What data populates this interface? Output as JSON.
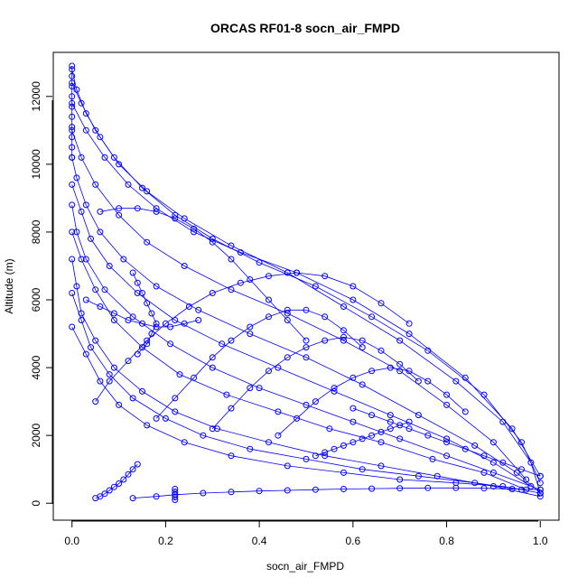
{
  "chart_data": {
    "type": "scatter",
    "title": "ORCAS RF01-8 socn_air_FMPD",
    "xlabel": "socn_air_FMPD",
    "ylabel": "Altitude (m)",
    "xlim": [
      -0.04,
      1.04
    ],
    "ylim": [
      -500,
      13300
    ],
    "xticks": [
      0.0,
      0.2,
      0.4,
      0.6,
      0.8,
      1.0
    ],
    "xtick_labels": [
      "0.0",
      "0.2",
      "0.4",
      "0.6",
      "0.8",
      "1.0"
    ],
    "yticks": [
      0,
      2000,
      4000,
      6000,
      8000,
      10000,
      12000
    ],
    "ytick_labels": [
      "0",
      "2000",
      "4000",
      "6000",
      "8000",
      "10000",
      "12000"
    ],
    "grid": false,
    "marker": "open-circle",
    "color": "#0000ff",
    "series": [
      {
        "x": [
          0.0,
          0.01,
          0.03,
          0.06,
          0.1,
          0.16,
          0.24,
          0.34,
          0.46,
          0.58,
          0.7,
          0.82,
          0.92,
          0.98,
          1.0
        ],
        "y": [
          12800,
          12200,
          11500,
          10800,
          10000,
          9200,
          8400,
          7600,
          6800,
          5800,
          4800,
          3600,
          2400,
          1200,
          300
        ]
      },
      {
        "x": [
          0.0,
          0.02,
          0.05,
          0.09,
          0.15,
          0.22,
          0.3,
          0.4,
          0.52,
          0.64,
          0.76,
          0.88,
          0.96,
          1.0
        ],
        "y": [
          12400,
          11800,
          11000,
          10200,
          9300,
          8500,
          7800,
          7100,
          6400,
          5500,
          4500,
          3200,
          1800,
          600
        ]
      },
      {
        "x": [
          0.0,
          0.03,
          0.07,
          0.12,
          0.18,
          0.26,
          0.36,
          0.48,
          0.6,
          0.72,
          0.84,
          0.94,
          1.0
        ],
        "y": [
          11800,
          11000,
          10200,
          9400,
          8700,
          8000,
          7400,
          6800,
          6000,
          5000,
          3700,
          2200,
          800
        ]
      },
      {
        "x": [
          0.0,
          0.02,
          0.05,
          0.1,
          0.16,
          0.24,
          0.34,
          0.46,
          0.58,
          0.7,
          0.8,
          0.9,
          0.97
        ],
        "y": [
          11000,
          10200,
          9400,
          8500,
          7700,
          7000,
          6300,
          5600,
          4800,
          3900,
          2900,
          1800,
          700
        ]
      },
      {
        "x": [
          0.0,
          0.01,
          0.03,
          0.06,
          0.11,
          0.18,
          0.27,
          0.38,
          0.5,
          0.62,
          0.74,
          0.86,
          0.95,
          1.0
        ],
        "y": [
          10200,
          9600,
          8800,
          8000,
          7200,
          6400,
          5700,
          5000,
          4300,
          3500,
          2600,
          1700,
          900,
          300
        ]
      },
      {
        "x": [
          0.0,
          0.02,
          0.04,
          0.08,
          0.14,
          0.22,
          0.32,
          0.44,
          0.56,
          0.68,
          0.8,
          0.9,
          0.98
        ],
        "y": [
          9400,
          8600,
          7800,
          7000,
          6200,
          5400,
          4700,
          4000,
          3300,
          2600,
          1900,
          1200,
          500
        ]
      },
      {
        "x": [
          0.0,
          0.01,
          0.03,
          0.07,
          0.13,
          0.21,
          0.3,
          0.4,
          0.5,
          0.6,
          0.7,
          0.8,
          0.9,
          1.0
        ],
        "y": [
          8800,
          8000,
          7200,
          6300,
          5500,
          4700,
          4000,
          3400,
          2900,
          2400,
          1900,
          1400,
          900,
          400
        ]
      },
      {
        "x": [
          0.0,
          0.02,
          0.05,
          0.09,
          0.15,
          0.23,
          0.33,
          0.44,
          0.55,
          0.66,
          0.77,
          0.88,
          0.97
        ],
        "y": [
          8000,
          7200,
          6300,
          5400,
          4600,
          3800,
          3200,
          2700,
          2200,
          1800,
          1300,
          900,
          400
        ]
      },
      {
        "x": [
          0.0,
          0.01,
          0.02,
          0.05,
          0.09,
          0.15,
          0.22,
          0.31,
          0.42,
          0.54,
          0.66,
          0.78,
          0.9,
          1.0
        ],
        "y": [
          7200,
          6400,
          5600,
          4800,
          4000,
          3300,
          2700,
          2200,
          1800,
          1400,
          1100,
          800,
          500,
          200
        ]
      },
      {
        "x": [
          0.0,
          0.02,
          0.04,
          0.08,
          0.13,
          0.2,
          0.28,
          0.38,
          0.5,
          0.62,
          0.74,
          0.86,
          0.96
        ],
        "y": [
          6200,
          5400,
          4600,
          3800,
          3100,
          2500,
          2000,
          1600,
          1300,
          1000,
          800,
          600,
          400
        ]
      },
      {
        "x": [
          0.0,
          0.03,
          0.06,
          0.1,
          0.16,
          0.24,
          0.34,
          0.46,
          0.58,
          0.7,
          0.82,
          0.92,
          1.0
        ],
        "y": [
          5200,
          4400,
          3600,
          2900,
          2300,
          1800,
          1400,
          1100,
          900,
          700,
          600,
          500,
          300
        ]
      },
      {
        "x": [
          0.05,
          0.08,
          0.12,
          0.16,
          0.2,
          0.25,
          0.3,
          0.36,
          0.42,
          0.48,
          0.54,
          0.6,
          0.66,
          0.72
        ],
        "y": [
          3000,
          3600,
          4200,
          4800,
          5300,
          5800,
          6200,
          6500,
          6700,
          6800,
          6700,
          6400,
          5900,
          5300
        ]
      },
      {
        "x": [
          0.18,
          0.22,
          0.26,
          0.3,
          0.34,
          0.38,
          0.42,
          0.46,
          0.5,
          0.54,
          0.58,
          0.62
        ],
        "y": [
          2500,
          3100,
          3700,
          4300,
          4800,
          5200,
          5500,
          5700,
          5700,
          5500,
          5100,
          4600
        ]
      },
      {
        "x": [
          0.3,
          0.34,
          0.38,
          0.42,
          0.46,
          0.5,
          0.54,
          0.58,
          0.62,
          0.66,
          0.7,
          0.74
        ],
        "y": [
          2200,
          2800,
          3400,
          3900,
          4300,
          4600,
          4800,
          4900,
          4800,
          4500,
          4100,
          3600
        ]
      },
      {
        "x": [
          0.44,
          0.48,
          0.52,
          0.56,
          0.6,
          0.64,
          0.68,
          0.72,
          0.76,
          0.8,
          0.84
        ],
        "y": [
          2000,
          2500,
          3000,
          3400,
          3700,
          3900,
          4000,
          3900,
          3600,
          3200,
          2700
        ]
      },
      {
        "x": [
          0.06,
          0.1,
          0.14,
          0.18,
          0.22,
          0.26,
          0.3,
          0.34,
          0.38,
          0.42,
          0.46,
          0.5
        ],
        "y": [
          8600,
          8700,
          8700,
          8600,
          8400,
          8100,
          7700,
          7200,
          6600,
          6000,
          5400,
          4800
        ]
      },
      {
        "x": [
          0.03,
          0.06,
          0.09,
          0.12,
          0.15,
          0.18,
          0.21,
          0.24,
          0.27
        ],
        "y": [
          6000,
          5800,
          5600,
          5400,
          5300,
          5200,
          5200,
          5300,
          5400
        ]
      },
      {
        "x": [
          0.13,
          0.14,
          0.15,
          0.16,
          0.17,
          0.18,
          0.17,
          0.16,
          0.14
        ],
        "y": [
          6800,
          6500,
          6200,
          5900,
          5600,
          5300,
          5000,
          4700,
          4400
        ]
      },
      {
        "x": [
          0.05,
          0.06,
          0.07,
          0.08,
          0.09,
          0.1,
          0.11,
          0.12,
          0.13,
          0.14
        ],
        "y": [
          150,
          200,
          280,
          380,
          480,
          580,
          700,
          850,
          1000,
          1150
        ]
      },
      {
        "x": [
          0.13,
          0.18,
          0.22,
          0.28,
          0.34,
          0.4,
          0.46,
          0.52,
          0.58,
          0.64,
          0.7,
          0.76,
          0.82,
          0.88,
          0.94,
          1.0
        ],
        "y": [
          150,
          200,
          250,
          300,
          330,
          360,
          380,
          400,
          420,
          430,
          440,
          450,
          450,
          440,
          420,
          400
        ]
      },
      {
        "x": [
          0.22,
          0.22,
          0.22,
          0.22,
          0.22
        ],
        "y": [
          100,
          180,
          260,
          340,
          420
        ]
      },
      {
        "x": [
          0.52,
          0.54,
          0.56,
          0.58,
          0.6,
          0.62,
          0.64,
          0.66,
          0.68,
          0.7,
          0.72
        ],
        "y": [
          1400,
          1500,
          1600,
          1700,
          1800,
          1900,
          2000,
          2100,
          2200,
          2300,
          2400
        ]
      },
      {
        "x": [
          0.6,
          0.64,
          0.68,
          0.72,
          0.76,
          0.8,
          0.84,
          0.88,
          0.92,
          0.96,
          1.0
        ],
        "y": [
          2800,
          2600,
          2400,
          2200,
          2000,
          1800,
          1600,
          1400,
          1200,
          1000,
          800
        ]
      },
      {
        "x": [
          0.0,
          0.0,
          0.0,
          0.0,
          0.0,
          0.0,
          0.0,
          0.0,
          0.0,
          0.0
        ],
        "y": [
          12900,
          12600,
          12300,
          12000,
          11700,
          11400,
          11100,
          10800,
          10500,
          10200
        ]
      }
    ]
  }
}
